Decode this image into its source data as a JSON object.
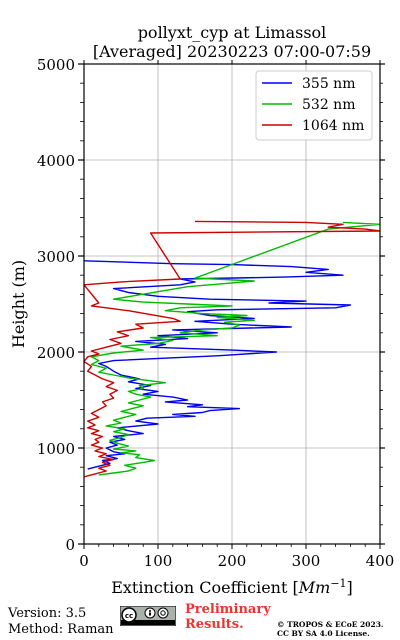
{
  "chart_data": {
    "type": "line",
    "orientation": "profile (x = extinction, y = height)",
    "title_line1": "pollyxt_cyp at Limassol",
    "title_line2": "[Averaged] 20230223 07:00-07:59",
    "xlabel": "Extinction Coefficient [Mm⁻¹]",
    "ylabel": "Height (m)",
    "xlim": [
      0,
      400
    ],
    "ylim": [
      0,
      5000
    ],
    "x_ticks": [
      0,
      100,
      200,
      300,
      400
    ],
    "y_ticks": [
      0,
      1000,
      2000,
      3000,
      4000,
      5000
    ],
    "grid": true,
    "legend_position": "top-right",
    "series": [
      {
        "name": "355 nm",
        "color": "#0000ee",
        "points": [
          [
            5,
            780
          ],
          [
            20,
            810
          ],
          [
            35,
            840
          ],
          [
            25,
            870
          ],
          [
            45,
            890
          ],
          [
            30,
            920
          ],
          [
            55,
            940
          ],
          [
            40,
            960
          ],
          [
            30,
            1000
          ],
          [
            45,
            1030
          ],
          [
            35,
            1060
          ],
          [
            55,
            1090
          ],
          [
            40,
            1120
          ],
          [
            80,
            1150
          ],
          [
            60,
            1180
          ],
          [
            45,
            1210
          ],
          [
            100,
            1250
          ],
          [
            70,
            1280
          ],
          [
            85,
            1310
          ],
          [
            150,
            1330
          ],
          [
            120,
            1350
          ],
          [
            160,
            1370
          ],
          [
            170,
            1390
          ],
          [
            210,
            1410
          ],
          [
            140,
            1430
          ],
          [
            160,
            1450
          ],
          [
            110,
            1480
          ],
          [
            140,
            1500
          ],
          [
            120,
            1530
          ],
          [
            80,
            1560
          ],
          [
            100,
            1590
          ],
          [
            70,
            1620
          ],
          [
            90,
            1650
          ],
          [
            60,
            1690
          ],
          [
            75,
            1720
          ],
          [
            50,
            1760
          ],
          [
            40,
            1800
          ],
          [
            30,
            1850
          ],
          [
            20,
            1880
          ],
          [
            40,
            1910
          ],
          [
            120,
            1940
          ],
          [
            180,
            1960
          ],
          [
            260,
            2000
          ],
          [
            200,
            2020
          ],
          [
            90,
            2050
          ],
          [
            110,
            2080
          ],
          [
            70,
            2110
          ],
          [
            140,
            2140
          ],
          [
            100,
            2170
          ],
          [
            180,
            2200
          ],
          [
            120,
            2230
          ],
          [
            280,
            2260
          ],
          [
            200,
            2290
          ],
          [
            150,
            2320
          ],
          [
            230,
            2350
          ],
          [
            170,
            2380
          ],
          [
            140,
            2420
          ],
          [
            180,
            2440
          ],
          [
            340,
            2460
          ],
          [
            360,
            2490
          ],
          [
            250,
            2510
          ],
          [
            300,
            2530
          ],
          [
            170,
            2550
          ],
          [
            100,
            2580
          ],
          [
            60,
            2620
          ],
          [
            40,
            2660
          ],
          [
            130,
            2700
          ],
          [
            150,
            2730
          ],
          [
            130,
            2760
          ],
          [
            270,
            2780
          ],
          [
            350,
            2800
          ],
          [
            300,
            2830
          ],
          [
            330,
            2860
          ],
          [
            280,
            2890
          ],
          [
            200,
            2910
          ],
          [
            120,
            2920
          ],
          [
            0,
            2950
          ]
        ]
      },
      {
        "name": "532 nm",
        "color": "#00bb00",
        "points": [
          [
            20,
            720
          ],
          [
            40,
            740
          ],
          [
            60,
            760
          ],
          [
            70,
            790
          ],
          [
            55,
            820
          ],
          [
            80,
            850
          ],
          [
            95,
            870
          ],
          [
            70,
            900
          ],
          [
            75,
            930
          ],
          [
            50,
            950
          ],
          [
            70,
            970
          ],
          [
            40,
            990
          ],
          [
            60,
            1020
          ],
          [
            45,
            1050
          ],
          [
            35,
            1080
          ],
          [
            50,
            1110
          ],
          [
            60,
            1140
          ],
          [
            40,
            1170
          ],
          [
            55,
            1200
          ],
          [
            30,
            1230
          ],
          [
            50,
            1260
          ],
          [
            40,
            1290
          ],
          [
            55,
            1320
          ],
          [
            70,
            1350
          ],
          [
            50,
            1380
          ],
          [
            65,
            1410
          ],
          [
            80,
            1440
          ],
          [
            60,
            1470
          ],
          [
            75,
            1500
          ],
          [
            90,
            1530
          ],
          [
            70,
            1560
          ],
          [
            60,
            1590
          ],
          [
            80,
            1620
          ],
          [
            75,
            1650
          ],
          [
            110,
            1680
          ],
          [
            90,
            1700
          ],
          [
            60,
            1730
          ],
          [
            40,
            1760
          ],
          [
            20,
            1790
          ],
          [
            30,
            1830
          ],
          [
            10,
            1870
          ],
          [
            20,
            1910
          ],
          [
            10,
            1950
          ],
          [
            40,
            1990
          ],
          [
            80,
            2020
          ],
          [
            50,
            2060
          ],
          [
            100,
            2090
          ],
          [
            120,
            2120
          ],
          [
            90,
            2150
          ],
          [
            180,
            2170
          ],
          [
            130,
            2200
          ],
          [
            160,
            2230
          ],
          [
            200,
            2250
          ],
          [
            210,
            2280
          ],
          [
            190,
            2310
          ],
          [
            230,
            2330
          ],
          [
            180,
            2360
          ],
          [
            220,
            2380
          ],
          [
            160,
            2400
          ],
          [
            110,
            2430
          ],
          [
            130,
            2460
          ],
          [
            200,
            2480
          ],
          [
            140,
            2500
          ],
          [
            80,
            2520
          ],
          [
            40,
            2550
          ],
          [
            140,
            2680
          ],
          [
            200,
            2720
          ],
          [
            230,
            2740
          ],
          [
            150,
            2770
          ],
          [
            330,
            3280
          ],
          [
            400,
            3330
          ],
          [
            350,
            3350
          ]
        ]
      },
      {
        "name": "1064 nm",
        "color": "#cc0000",
        "points": [
          [
            0,
            700
          ],
          [
            15,
            730
          ],
          [
            30,
            760
          ],
          [
            20,
            790
          ],
          [
            35,
            820
          ],
          [
            25,
            850
          ],
          [
            40,
            880
          ],
          [
            20,
            910
          ],
          [
            30,
            940
          ],
          [
            15,
            970
          ],
          [
            25,
            1000
          ],
          [
            10,
            1030
          ],
          [
            20,
            1060
          ],
          [
            15,
            1090
          ],
          [
            25,
            1120
          ],
          [
            10,
            1150
          ],
          [
            20,
            1180
          ],
          [
            5,
            1210
          ],
          [
            15,
            1240
          ],
          [
            5,
            1280
          ],
          [
            20,
            1320
          ],
          [
            10,
            1360
          ],
          [
            20,
            1400
          ],
          [
            30,
            1440
          ],
          [
            25,
            1480
          ],
          [
            40,
            1520
          ],
          [
            35,
            1560
          ],
          [
            45,
            1600
          ],
          [
            30,
            1640
          ],
          [
            40,
            1680
          ],
          [
            25,
            1720
          ],
          [
            15,
            1760
          ],
          [
            5,
            1800
          ],
          [
            10,
            1850
          ],
          [
            0,
            1900
          ],
          [
            5,
            1950
          ],
          [
            20,
            1980
          ],
          [
            10,
            2010
          ],
          [
            30,
            2050
          ],
          [
            50,
            2090
          ],
          [
            35,
            2130
          ],
          [
            60,
            2170
          ],
          [
            45,
            2210
          ],
          [
            80,
            2250
          ],
          [
            70,
            2290
          ],
          [
            130,
            2320
          ],
          [
            120,
            2350
          ],
          [
            90,
            2390
          ],
          [
            60,
            2430
          ],
          [
            30,
            2460
          ],
          [
            10,
            2480
          ],
          [
            20,
            2510
          ],
          [
            0,
            2700
          ],
          [
            50,
            2730
          ],
          [
            130,
            2760
          ],
          [
            90,
            3240
          ],
          [
            400,
            3260
          ],
          [
            380,
            3280
          ],
          [
            330,
            3300
          ],
          [
            350,
            3330
          ],
          [
            300,
            3350
          ],
          [
            150,
            3360
          ]
        ]
      }
    ]
  },
  "footer": {
    "version": "Version: 3.5",
    "method": "Method: Raman",
    "cc_badge": "cc-by-sa-icon",
    "preliminary_line1": "Preliminary",
    "preliminary_line2": "Results.",
    "copyright_line1": "© TROPOS & ECoE 2023.",
    "copyright_line2": "CC BY SA 4.0 License."
  }
}
